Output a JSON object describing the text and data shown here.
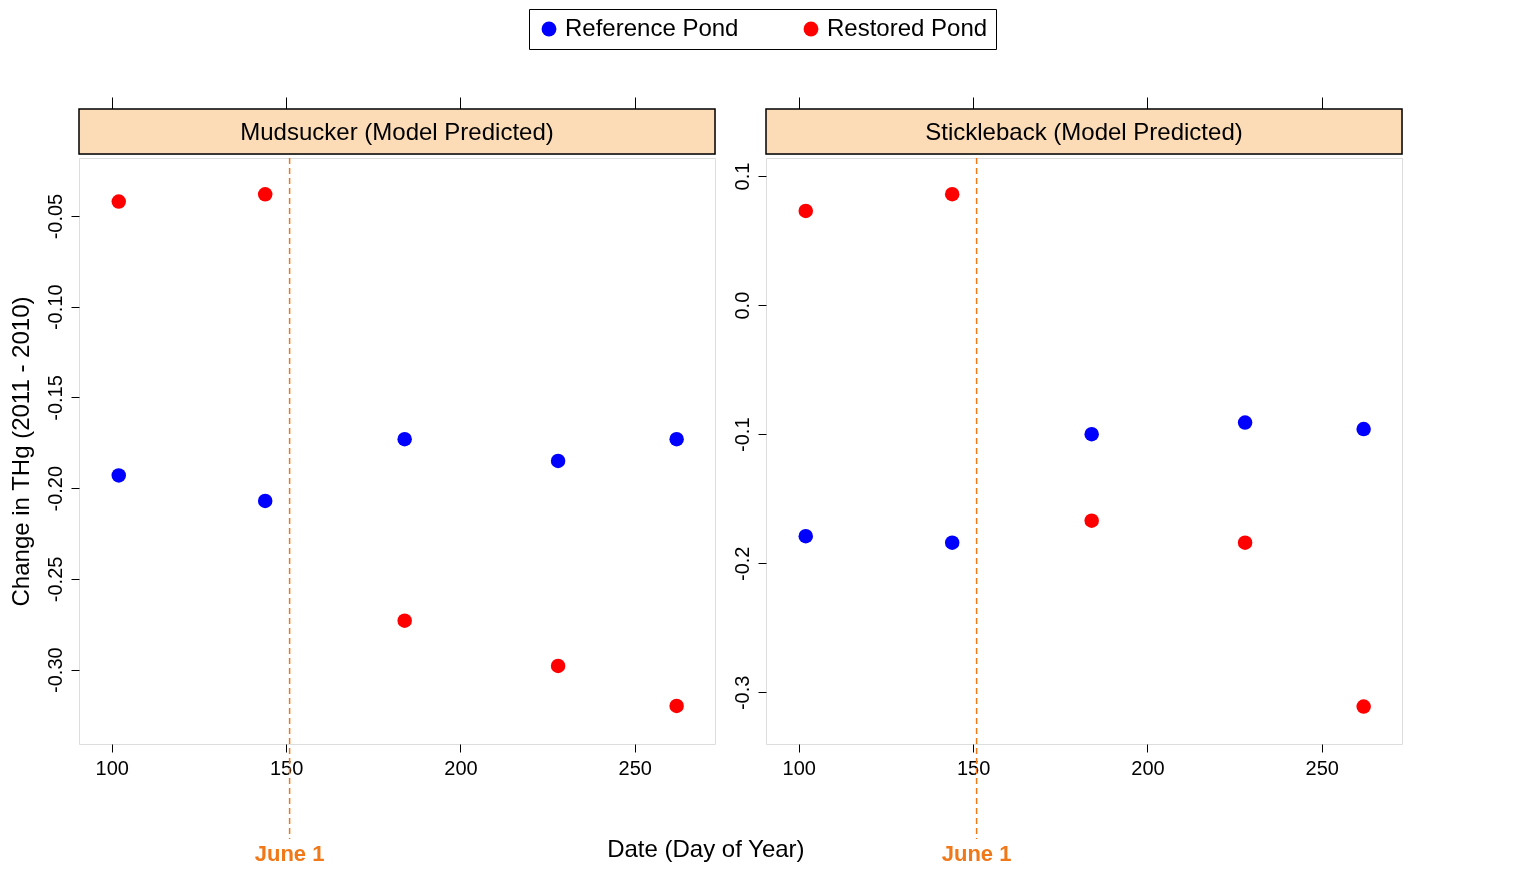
{
  "chart_data": [
    {
      "type": "scatter",
      "title": "Mudsucker (Model Predicted)",
      "xlabel": "Date (Day of Year)",
      "ylabel": "Change in THg (2011 - 2010)",
      "legend": "top",
      "marker": "circle",
      "grid": false,
      "x": [
        102,
        144,
        184,
        228,
        262
      ],
      "series": [
        {
          "name": "Reference Pond",
          "color": "#0000ff",
          "values": [
            -0.193,
            -0.207,
            -0.173,
            -0.185,
            -0.173
          ]
        },
        {
          "name": "Restored Pond",
          "color": "#ff0000",
          "values": [
            -0.042,
            -0.038,
            -0.273,
            -0.298,
            -0.32
          ]
        }
      ],
      "xlim": [
        90.6,
        273
      ],
      "xticks": [
        100,
        150,
        200,
        250
      ],
      "ylim": [
        -0.341,
        -0.018
      ],
      "yticks": [
        -0.05,
        {
          "value": -0.1,
          "label": "-0.10"
        },
        -0.15,
        {
          "value": -0.2,
          "label": "-0.20"
        },
        -0.25,
        {
          "value": -0.3,
          "label": "-0.30"
        }
      ],
      "ref_lines": [
        {
          "axis": "x",
          "value": 151,
          "label": "June 1",
          "color": "#f07818",
          "line_style": "dashed"
        }
      ]
    },
    {
      "type": "scatter",
      "title": "Stickleback (Model Predicted)",
      "marker": "circle",
      "grid": false,
      "x": [
        102,
        144,
        184,
        228,
        262
      ],
      "series": [
        {
          "name": "Reference Pond",
          "color": "#0000ff",
          "values": [
            -0.179,
            -0.184,
            -0.1,
            -0.091,
            -0.096
          ]
        },
        {
          "name": "Restored Pond",
          "color": "#ff0000",
          "values": [
            0.073,
            0.086,
            -0.167,
            -0.184,
            -0.311
          ]
        }
      ],
      "xlim": [
        90.6,
        273
      ],
      "xticks": [
        100,
        150,
        200,
        250
      ],
      "ylim": [
        -0.34,
        0.114
      ],
      "yticks": [
        0.1,
        {
          "value": 0,
          "label": "0.0"
        },
        -0.1,
        -0.2,
        -0.3
      ],
      "ref_lines": [
        {
          "axis": "x",
          "value": 151,
          "label": "June 1",
          "color": "#f07818",
          "line_style": "dashed"
        }
      ]
    }
  ]
}
